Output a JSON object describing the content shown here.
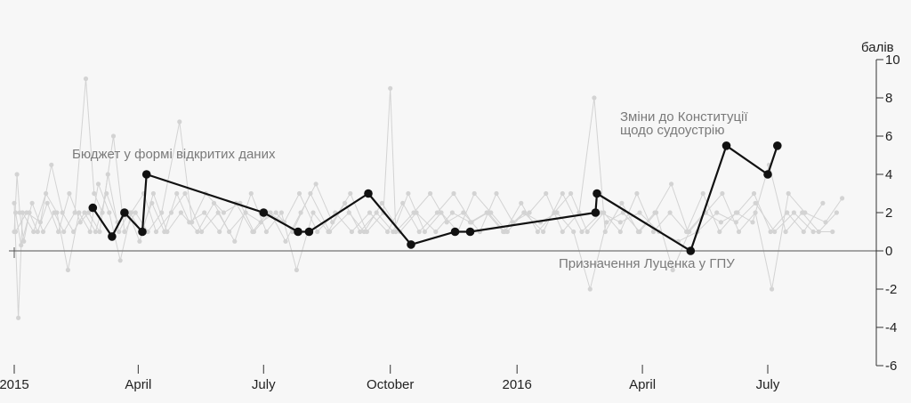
{
  "chart_data": {
    "type": "line",
    "title": "",
    "xlabel": "",
    "ylabel": "балів",
    "ylim": [
      -6,
      10
    ],
    "yticks": [
      "10",
      "8",
      "6",
      "4",
      "2",
      "0",
      "-2",
      "-4",
      "-6"
    ],
    "xlim": [
      "2015-01-01",
      "2016-09-30"
    ],
    "xticks": [
      {
        "date": "2015-01-01",
        "label": "2015"
      },
      {
        "date": "2015-04-01",
        "label": "April"
      },
      {
        "date": "2015-07-01",
        "label": "July"
      },
      {
        "date": "2015-10-01",
        "label": "October"
      },
      {
        "date": "2016-01-01",
        "label": "2016"
      },
      {
        "date": "2016-04-01",
        "label": "April"
      },
      {
        "date": "2016-07-01",
        "label": "July"
      }
    ],
    "grid": false,
    "colors": {
      "main": "#111111",
      "background": "#d3d3d3",
      "baseline": "#888888",
      "annotation": "#7a7a7a"
    },
    "series": [
      {
        "values": [
          {
            "x": "2015-02-27",
            "y": 2.25
          },
          {
            "x": "2015-03-13",
            "y": 0.75
          },
          {
            "x": "2015-03-22",
            "y": 2.0
          },
          {
            "x": "2015-04-04",
            "y": 1.0
          },
          {
            "x": "2015-04-07",
            "y": 4.0
          },
          {
            "x": "2015-07-01",
            "y": 2.0
          },
          {
            "x": "2015-07-26",
            "y": 1.0
          },
          {
            "x": "2015-08-03",
            "y": 1.0
          },
          {
            "x": "2015-09-15",
            "y": 3.0
          },
          {
            "x": "2015-10-16",
            "y": 0.33
          },
          {
            "x": "2015-11-17",
            "y": 1.0
          },
          {
            "x": "2015-11-28",
            "y": 1.0
          },
          {
            "x": "2016-02-27",
            "y": 2.0
          },
          {
            "x": "2016-02-28",
            "y": 3.0
          },
          {
            "x": "2016-05-06",
            "y": 0.0
          },
          {
            "x": "2016-06-01",
            "y": 5.5
          },
          {
            "x": "2016-07-01",
            "y": 4.0
          },
          {
            "x": "2016-07-08",
            "y": 5.5
          }
        ]
      }
    ],
    "background_series": [
      [
        [
          "2015-01-01",
          1
        ],
        [
          "2015-01-03",
          4
        ],
        [
          "2015-01-05",
          2
        ],
        [
          "2015-01-08",
          0.5
        ],
        [
          "2015-01-12",
          2
        ],
        [
          "2015-01-18",
          1
        ],
        [
          "2015-01-25",
          2.5
        ],
        [
          "2015-02-02",
          1
        ],
        [
          "2015-02-10",
          3
        ],
        [
          "2015-02-18",
          1.5
        ],
        [
          "2015-02-24",
          2
        ],
        [
          "2015-03-04",
          1
        ],
        [
          "2015-03-10",
          4
        ],
        [
          "2015-03-18",
          1
        ],
        [
          "2015-03-25",
          2
        ],
        [
          "2015-04-02",
          0.5
        ],
        [
          "2015-04-12",
          3
        ],
        [
          "2015-04-22",
          1
        ],
        [
          "2015-05-02",
          2
        ],
        [
          "2015-05-14",
          1
        ],
        [
          "2015-05-26",
          2.5
        ],
        [
          "2015-06-06",
          1
        ],
        [
          "2015-06-18",
          2
        ],
        [
          "2015-06-29",
          1.5
        ],
        [
          "2015-07-10",
          2
        ],
        [
          "2015-07-22",
          1
        ],
        [
          "2015-08-04",
          3
        ],
        [
          "2015-08-18",
          1
        ],
        [
          "2015-09-01",
          2
        ],
        [
          "2015-09-12",
          1
        ],
        [
          "2015-09-25",
          2.5
        ],
        [
          "2015-10-08",
          1
        ],
        [
          "2015-10-20",
          2
        ],
        [
          "2015-11-03",
          1
        ],
        [
          "2015-11-15",
          2
        ],
        [
          "2015-11-28",
          1.5
        ],
        [
          "2015-12-10",
          2
        ],
        [
          "2015-12-22",
          1
        ],
        [
          "2016-01-06",
          2
        ],
        [
          "2016-01-20",
          1
        ],
        [
          "2016-02-03",
          3
        ],
        [
          "2016-02-17",
          1
        ],
        [
          "2016-03-02",
          2
        ],
        [
          "2016-03-16",
          1.5
        ],
        [
          "2016-03-30",
          2
        ],
        [
          "2016-04-13",
          1
        ],
        [
          "2016-04-27",
          0.5
        ],
        [
          "2016-05-11",
          1
        ],
        [
          "2016-05-25",
          2
        ],
        [
          "2016-06-08",
          1.5
        ],
        [
          "2016-06-22",
          2.5
        ],
        [
          "2016-07-06",
          1
        ],
        [
          "2016-07-20",
          2
        ],
        [
          "2016-08-03",
          1
        ],
        [
          "2016-08-17",
          1
        ]
      ],
      [
        [
          "2015-01-02",
          2
        ],
        [
          "2015-01-06",
          0.3
        ],
        [
          "2015-01-14",
          2.5
        ],
        [
          "2015-01-22",
          1
        ],
        [
          "2015-01-30",
          2
        ],
        [
          "2015-02-06",
          1
        ],
        [
          "2015-02-14",
          2
        ],
        [
          "2015-02-22",
          9
        ],
        [
          "2015-02-28",
          3
        ],
        [
          "2015-03-06",
          2
        ],
        [
          "2015-03-14",
          6
        ],
        [
          "2015-03-22",
          1
        ],
        [
          "2015-03-30",
          2
        ],
        [
          "2015-04-08",
          1
        ],
        [
          "2015-04-18",
          2
        ],
        [
          "2015-05-01",
          6.75
        ],
        [
          "2015-05-10",
          1.5
        ],
        [
          "2015-05-20",
          3
        ],
        [
          "2015-06-02",
          2
        ],
        [
          "2015-06-14",
          2.5
        ],
        [
          "2015-06-24",
          1
        ],
        [
          "2015-07-06",
          2
        ],
        [
          "2015-07-17",
          0.5
        ],
        [
          "2015-07-28",
          2
        ],
        [
          "2015-08-08",
          3.5
        ],
        [
          "2015-08-20",
          1.5
        ],
        [
          "2015-09-02",
          3
        ],
        [
          "2015-09-14",
          1
        ],
        [
          "2015-09-26",
          2
        ],
        [
          "2015-10-01",
          8.5
        ],
        [
          "2015-10-05",
          1
        ],
        [
          "2015-10-18",
          2
        ],
        [
          "2015-10-30",
          3
        ],
        [
          "2015-11-11",
          1.5
        ],
        [
          "2015-11-23",
          2
        ],
        [
          "2015-12-05",
          1
        ],
        [
          "2015-12-17",
          3
        ],
        [
          "2015-12-29",
          1.5
        ],
        [
          "2016-01-10",
          2
        ],
        [
          "2016-01-22",
          3
        ],
        [
          "2016-02-03",
          1
        ],
        [
          "2016-02-15",
          2
        ],
        [
          "2016-02-26",
          8
        ],
        [
          "2016-03-05",
          1
        ],
        [
          "2016-03-17",
          2.5
        ],
        [
          "2016-03-29",
          1
        ],
        [
          "2016-04-10",
          2
        ],
        [
          "2016-04-22",
          3.5
        ],
        [
          "2016-05-04",
          1
        ],
        [
          "2016-05-16",
          2
        ],
        [
          "2016-05-28",
          1.5
        ],
        [
          "2016-06-09",
          2
        ],
        [
          "2016-06-21",
          3
        ],
        [
          "2016-07-03",
          1
        ],
        [
          "2016-07-15",
          2
        ],
        [
          "2016-07-27",
          1
        ],
        [
          "2016-08-10",
          2.5
        ]
      ],
      [
        [
          "2015-01-01",
          2.5
        ],
        [
          "2015-01-04",
          -3.5
        ],
        [
          "2015-01-07",
          2
        ],
        [
          "2015-01-15",
          1
        ],
        [
          "2015-01-24",
          3
        ],
        [
          "2015-02-01",
          2
        ],
        [
          "2015-02-09",
          -1
        ],
        [
          "2015-02-17",
          2
        ],
        [
          "2015-02-25",
          1
        ],
        [
          "2015-03-03",
          3.5
        ],
        [
          "2015-03-11",
          2
        ],
        [
          "2015-03-19",
          -0.5
        ],
        [
          "2015-03-27",
          2
        ],
        [
          "2015-04-05",
          3
        ],
        [
          "2015-04-14",
          1
        ],
        [
          "2015-04-25",
          2
        ],
        [
          "2015-05-05",
          3
        ],
        [
          "2015-05-17",
          1
        ],
        [
          "2015-05-29",
          2
        ],
        [
          "2015-06-10",
          0.5
        ],
        [
          "2015-06-22",
          3
        ],
        [
          "2015-07-03",
          1
        ],
        [
          "2015-07-14",
          2
        ],
        [
          "2015-07-25",
          -1
        ],
        [
          "2015-08-06",
          2
        ],
        [
          "2015-08-17",
          1
        ],
        [
          "2015-08-29",
          2.5
        ],
        [
          "2015-09-09",
          1
        ],
        [
          "2015-09-21",
          2
        ],
        [
          "2015-10-03",
          1
        ],
        [
          "2015-10-14",
          3
        ],
        [
          "2015-10-26",
          1
        ],
        [
          "2015-11-07",
          2
        ],
        [
          "2015-11-19",
          1
        ],
        [
          "2015-12-01",
          3
        ],
        [
          "2015-12-13",
          2
        ],
        [
          "2015-12-25",
          1
        ],
        [
          "2016-01-06",
          2
        ],
        [
          "2016-01-18",
          1.5
        ],
        [
          "2016-01-30",
          2
        ],
        [
          "2016-02-11",
          1
        ],
        [
          "2016-02-23",
          -2
        ],
        [
          "2016-03-06",
          1.5
        ],
        [
          "2016-03-18",
          2
        ],
        [
          "2016-03-30",
          1
        ],
        [
          "2016-04-11",
          2
        ],
        [
          "2016-04-23",
          -1
        ],
        [
          "2016-05-05",
          1
        ],
        [
          "2016-05-17",
          2
        ],
        [
          "2016-05-29",
          3
        ],
        [
          "2016-06-10",
          1
        ],
        [
          "2016-06-22",
          2
        ],
        [
          "2016-07-04",
          -2
        ],
        [
          "2016-07-16",
          3
        ],
        [
          "2016-07-28",
          2
        ],
        [
          "2016-08-12",
          1.5
        ],
        [
          "2016-08-24",
          2.75
        ]
      ],
      [
        [
          "2015-01-02",
          1
        ],
        [
          "2015-01-10",
          2
        ],
        [
          "2015-01-20",
          1.5
        ],
        [
          "2015-01-28",
          4.5
        ],
        [
          "2015-02-05",
          2
        ],
        [
          "2015-02-13",
          1
        ],
        [
          "2015-02-21",
          2
        ],
        [
          "2015-03-01",
          1
        ],
        [
          "2015-03-09",
          3
        ],
        [
          "2015-03-17",
          1.5
        ],
        [
          "2015-03-26",
          2
        ],
        [
          "2015-04-03",
          1
        ],
        [
          "2015-04-11",
          2.5
        ],
        [
          "2015-04-20",
          1
        ],
        [
          "2015-04-29",
          3
        ],
        [
          "2015-05-08",
          1.5
        ],
        [
          "2015-05-19",
          2
        ],
        [
          "2015-05-30",
          1
        ],
        [
          "2015-06-11",
          2.5
        ],
        [
          "2015-06-23",
          1
        ],
        [
          "2015-07-04",
          2
        ],
        [
          "2015-07-16",
          1.5
        ],
        [
          "2015-07-27",
          3
        ],
        [
          "2015-08-09",
          1
        ],
        [
          "2015-08-22",
          2
        ],
        [
          "2015-09-03",
          1
        ],
        [
          "2015-09-16",
          2
        ],
        [
          "2015-09-29",
          1
        ],
        [
          "2015-10-10",
          2.5
        ],
        [
          "2015-10-22",
          1
        ],
        [
          "2015-11-04",
          2
        ],
        [
          "2015-11-16",
          3
        ],
        [
          "2015-11-29",
          1.5
        ],
        [
          "2015-12-11",
          2
        ],
        [
          "2015-12-23",
          1
        ],
        [
          "2016-01-04",
          2.5
        ],
        [
          "2016-01-16",
          1
        ],
        [
          "2016-01-28",
          2
        ],
        [
          "2016-02-09",
          3
        ],
        [
          "2016-02-21",
          1
        ],
        [
          "2016-03-04",
          2
        ],
        [
          "2016-03-16",
          1
        ],
        [
          "2016-03-28",
          3
        ],
        [
          "2016-04-09",
          1
        ],
        [
          "2016-04-21",
          2
        ],
        [
          "2016-05-03",
          1
        ],
        [
          "2016-05-15",
          3
        ],
        [
          "2016-05-27",
          1
        ],
        [
          "2016-06-08",
          2
        ],
        [
          "2016-06-20",
          1.5
        ],
        [
          "2016-07-02",
          4.5
        ],
        [
          "2016-07-14",
          1
        ],
        [
          "2016-07-26",
          2
        ],
        [
          "2016-08-07",
          1
        ],
        [
          "2016-08-20",
          2
        ]
      ]
    ],
    "annotations": [
      {
        "text": "Бюджет у формі відкритих даних",
        "x": "2015-04-07",
        "y": 4.0
      },
      {
        "text": "Зміни до Конституції",
        "x": "2016-06-01",
        "y": 5.5
      },
      {
        "text": "щодо судоустрію",
        "x": "2016-06-01",
        "y": 5.5
      },
      {
        "text": "Призначення Луценка у ГПУ",
        "x": "2016-05-06",
        "y": 0.0
      }
    ]
  }
}
